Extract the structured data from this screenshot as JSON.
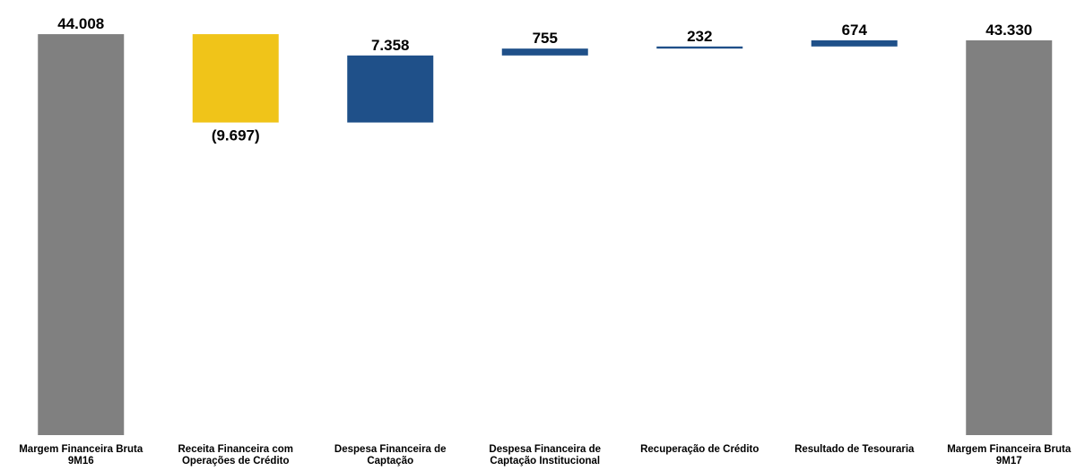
{
  "chart_data": {
    "type": "waterfall",
    "categories": [
      "Margem Financeira Bruta 9M16",
      "Receita Financeira com Operações de Crédito",
      "Despesa Financeira de Captação",
      "Despesa Financeira de Captação Institucional",
      "Recuperação de Crédito",
      "Resultado de Tesouraria",
      "Margem Financeira Bruta 9M17"
    ],
    "values": [
      44008,
      -9697,
      7358,
      755,
      232,
      674,
      43330
    ],
    "value_labels": [
      "44.008",
      "(9.697)",
      "7.358",
      "755",
      "232",
      "674",
      "43.330"
    ],
    "measure": [
      "absolute",
      "relative",
      "relative",
      "relative",
      "relative",
      "relative",
      "absolute"
    ],
    "colors": [
      "#808080",
      "#f0c419",
      "#1f5089",
      "#1f5089",
      "#1f5089",
      "#1f5089",
      "#808080"
    ],
    "ylim": [
      0,
      45000
    ]
  }
}
